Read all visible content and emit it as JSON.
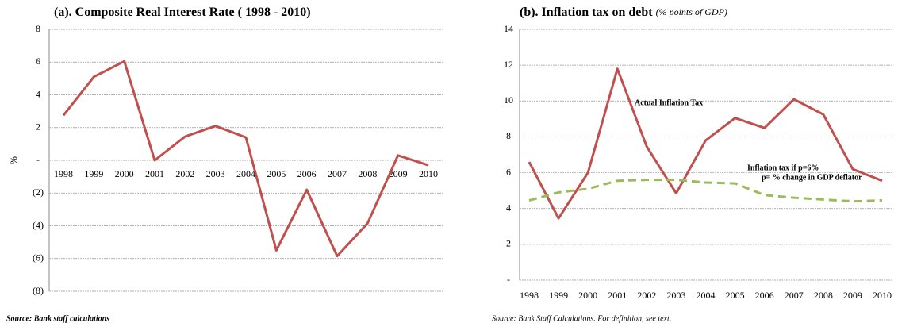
{
  "chart_data": [
    {
      "type": "line",
      "title": "(a).  Composite Real Interest Rate ( 1998 - 2010)",
      "ylabel": "%",
      "source": "Source: Bank staff calculations",
      "categories": [
        "1998",
        "1999",
        "2000",
        "2001",
        "2002",
        "2003",
        "2004",
        "2005",
        "2006",
        "2007",
        "2008",
        "2009",
        "2010"
      ],
      "series": [
        {
          "name": "Composite Real Interest Rate",
          "color": "#c0504d",
          "dashed": false,
          "values": [
            2.75,
            5.1,
            6.05,
            0,
            1.45,
            2.1,
            1.4,
            -5.5,
            -1.8,
            -5.85,
            -3.85,
            0.3,
            -0.3
          ]
        }
      ],
      "ylim": [
        -8,
        8
      ],
      "yticks": [
        {
          "value": -8,
          "label": "(8)"
        },
        {
          "value": -6,
          "label": "(6)"
        },
        {
          "value": -4,
          "label": "(4)"
        },
        {
          "value": -2,
          "label": "(2)"
        },
        {
          "value": 0,
          "label": "-"
        },
        2,
        4,
        6,
        8
      ],
      "grid": true
    },
    {
      "type": "line",
      "title": "(b).  Inflation tax on debt",
      "subtitle": "(% points of GDP)",
      "source": "Source: Bank Staff Calculations. For definition, see text.",
      "annotations": [
        "Actual Inflation Tax",
        "Inflation tax if p=6%",
        "p= % change in GDP deflator"
      ],
      "categories": [
        "1998",
        "1999",
        "2000",
        "2001",
        "2002",
        "2003",
        "2004",
        "2005",
        "2006",
        "2007",
        "2008",
        "2009",
        "2010"
      ],
      "series": [
        {
          "name": "Actual Inflation Tax",
          "color": "#c0504d",
          "dashed": false,
          "values": [
            6.6,
            3.45,
            6.0,
            11.8,
            7.45,
            4.85,
            7.8,
            9.05,
            8.5,
            10.1,
            9.25,
            6.2,
            5.55
          ]
        },
        {
          "name": "Inflation tax if p=6%",
          "color": "#9bbb59",
          "dashed": true,
          "values": [
            4.45,
            4.9,
            5.1,
            5.55,
            5.6,
            5.6,
            5.45,
            5.4,
            4.75,
            4.6,
            4.5,
            4.4,
            4.45
          ]
        }
      ],
      "ylim": [
        0,
        14
      ],
      "yticks": [
        {
          "value": 0,
          "label": "-"
        },
        2,
        4,
        6,
        8,
        10,
        12,
        14
      ],
      "grid": true
    }
  ]
}
